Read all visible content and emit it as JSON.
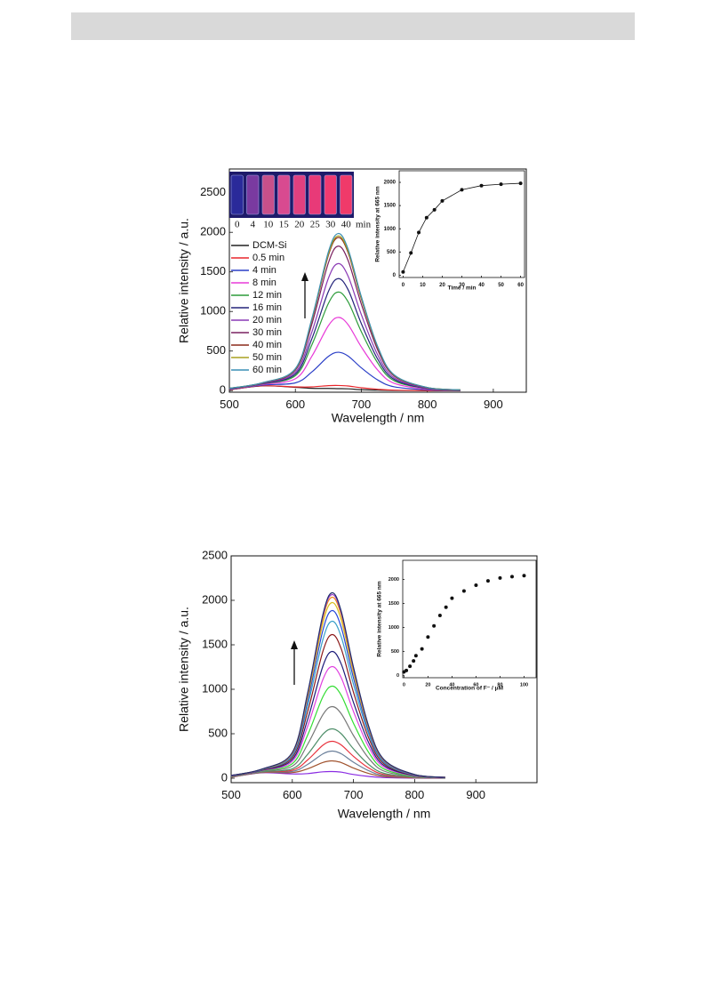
{
  "chart_data": [
    {
      "type": "line",
      "x": [
        500,
        550,
        600,
        625,
        650,
        665,
        680,
        700,
        725,
        750,
        800,
        850
      ],
      "xlim": [
        500,
        950
      ],
      "xticks": [
        500,
        600,
        700,
        800,
        900
      ],
      "ylim": [
        -20,
        2800
      ],
      "yticks": [
        0,
        500,
        1000,
        1500,
        2000,
        2500
      ],
      "xlabel": "Wavelength / nm",
      "ylabel": "Relative intensity / a.u.",
      "legend": "upper left",
      "photo_labels": [
        "0",
        "4",
        "10",
        "15",
        "20",
        "25",
        "30",
        "40"
      ],
      "photo_unit": "min",
      "series": [
        {
          "name": "DCM-Si",
          "color": "#222222",
          "values": [
            10,
            60,
            42,
            29,
            28,
            25,
            23,
            12,
            6,
            2,
            0,
            0
          ]
        },
        {
          "name": "0.5 min",
          "color": "#e8262b",
          "values": [
            11,
            61,
            47,
            47,
            63,
            65,
            59,
            36,
            17,
            6,
            1,
            0
          ]
        },
        {
          "name": "4 min",
          "color": "#2b3fc7",
          "values": [
            15,
            70,
            98,
            236,
            432,
            485,
            437,
            288,
            134,
            48,
            10,
            2
          ]
        },
        {
          "name": "8 min",
          "color": "#e83ad8",
          "values": [
            19,
            78,
            150,
            434,
            820,
            925,
            833,
            552,
            258,
            92,
            18,
            5
          ]
        },
        {
          "name": "12 min",
          "color": "#2d9c3a",
          "values": [
            22,
            85,
            189,
            578,
            1101,
            1245,
            1121,
            744,
            347,
            124,
            25,
            6
          ]
        },
        {
          "name": "16 min",
          "color": "#23237a",
          "values": [
            24,
            88,
            209,
            655,
            1251,
            1415,
            1274,
            846,
            395,
            141,
            28,
            7
          ]
        },
        {
          "name": "20 min",
          "color": "#8a3ab5",
          "values": [
            26,
            92,
            232,
            740,
            1418,
            1605,
            1445,
            960,
            448,
            160,
            32,
            8
          ]
        },
        {
          "name": "30 min",
          "color": "#7a2060",
          "values": [
            28,
            96,
            258,
            839,
            1612,
            1825,
            1643,
            1092,
            510,
            182,
            36,
            9
          ]
        },
        {
          "name": "40 min",
          "color": "#8b2a1a",
          "values": [
            29,
            99,
            272,
            889,
            1708,
            1935,
            1742,
            1158,
            540,
            193,
            39,
            10
          ]
        },
        {
          "name": "50 min",
          "color": "#a8a020",
          "values": [
            30,
            99,
            274,
            898,
            1726,
            1955,
            1760,
            1170,
            546,
            195,
            39,
            10
          ]
        },
        {
          "name": "60 min",
          "color": "#3a8fb5",
          "values": [
            30,
            100,
            278,
            911,
            1752,
            1985,
            1787,
            1188,
            554,
            198,
            40,
            10
          ]
        }
      ]
    },
    {
      "type": "line",
      "markers": true,
      "x": [
        0,
        4,
        8,
        12,
        16,
        20,
        30,
        40,
        50,
        60
      ],
      "values": [
        70,
        480,
        920,
        1240,
        1410,
        1600,
        1840,
        1930,
        1960,
        1980
      ],
      "color": "#111111",
      "xlim": [
        -2,
        62
      ],
      "xticks": [
        0,
        10,
        20,
        30,
        40,
        50,
        60
      ],
      "ylim": [
        -50,
        2250
      ],
      "yticks": [
        0,
        500,
        1000,
        1500,
        2000
      ],
      "xlabel": "Time / min",
      "ylabel": "Relative intensity at 665 nm"
    },
    {
      "type": "line",
      "x": [
        500,
        550,
        600,
        625,
        650,
        665,
        680,
        700,
        725,
        750,
        800,
        850
      ],
      "xlim": [
        500,
        1000
      ],
      "xticks": [
        500,
        600,
        700,
        800,
        900
      ],
      "ylim": [
        -50,
        2500
      ],
      "yticks": [
        0,
        500,
        1000,
        1500,
        2000,
        2500
      ],
      "xlabel": "Wavelength / nm",
      "ylabel": "Relative intensity / a.u.",
      "series": [
        {
          "color": "#8a2be2",
          "values": [
            11,
            61,
            48,
            52,
            72,
            75,
            68,
            42,
            20,
            7,
            1,
            0
          ]
        },
        {
          "color": "#a0522d",
          "values": [
            12,
            64,
            63,
            106,
            177,
            195,
            176,
            114,
            53,
            19,
            4,
            1
          ]
        },
        {
          "color": "#6a7f9a",
          "values": [
            13,
            66,
            76,
            155,
            274,
            305,
            275,
            180,
            84,
            30,
            6,
            2
          ]
        },
        {
          "color": "#e8323c",
          "values": [
            14,
            68,
            89,
            205,
            371,
            415,
            374,
            246,
            115,
            41,
            8,
            2
          ]
        },
        {
          "color": "#4f8f6a",
          "values": [
            16,
            71,
            106,
            268,
            494,
            555,
            500,
            330,
            154,
            55,
            11,
            3
          ]
        },
        {
          "color": "#777777",
          "values": [
            18,
            76,
            136,
            380,
            714,
            805,
            725,
            480,
            224,
            80,
            16,
            4
          ]
        },
        {
          "color": "#33dd33",
          "values": [
            20,
            81,
            164,
            484,
            916,
            1035,
            932,
            618,
            288,
            103,
            21,
            5
          ]
        },
        {
          "color": "#e040e0",
          "values": [
            22,
            85,
            190,
            583,
            1110,
            1255,
            1130,
            750,
            350,
            125,
            25,
            6
          ]
        },
        {
          "color": "#1c1c7a",
          "values": [
            24,
            88,
            210,
            659,
            1260,
            1425,
            1283,
            852,
            398,
            142,
            28,
            7
          ]
        },
        {
          "color": "#8b1a1a",
          "values": [
            26,
            92,
            233,
            745,
            1427,
            1615,
            1454,
            966,
            451,
            161,
            32,
            8
          ]
        },
        {
          "color": "#3aa0c8",
          "values": [
            28,
            95,
            251,
            812,
            1559,
            1765,
            1589,
            1056,
            493,
            176,
            35,
            9
          ]
        },
        {
          "color": "#2848d8",
          "values": [
            29,
            98,
            266,
            866,
            1664,
            1885,
            1697,
            1128,
            526,
            188,
            38,
            9
          ]
        },
        {
          "color": "#d8c020",
          "values": [
            30,
            99,
            276,
            907,
            1744,
            1975,
            1778,
            1182,
            552,
            197,
            39,
            10
          ]
        },
        {
          "color": "#f08a20",
          "values": [
            30,
            101,
            284,
            934,
            1796,
            2035,
            1832,
            1218,
            568,
            203,
            41,
            10
          ]
        },
        {
          "color": "#9b40c8",
          "values": [
            31,
            101,
            287,
            947,
            1823,
            2065,
            1859,
            1236,
            577,
            206,
            41,
            10
          ]
        },
        {
          "color": "#20306a",
          "values": [
            31,
            102,
            290,
            956,
            1840,
            2085,
            1877,
            1248,
            582,
            208,
            42,
            10
          ]
        }
      ]
    },
    {
      "type": "scatter",
      "x": [
        0,
        2,
        5,
        8,
        10,
        15,
        20,
        25,
        30,
        35,
        40,
        50,
        60,
        70,
        80,
        90,
        100
      ],
      "values": [
        70,
        100,
        190,
        300,
        410,
        550,
        800,
        1030,
        1250,
        1420,
        1610,
        1760,
        1880,
        1970,
        2030,
        2060,
        2080
      ],
      "color": "#111111",
      "xlim": [
        -1,
        110
      ],
      "xticks": [
        0,
        20,
        40,
        60,
        80,
        100
      ],
      "ylim": [
        -50,
        2400
      ],
      "yticks": [
        0,
        500,
        1000,
        1500,
        2000
      ],
      "xlabel": "Concentration of F⁻ / μM",
      "ylabel": "Relative intensity at 665 nm"
    }
  ]
}
